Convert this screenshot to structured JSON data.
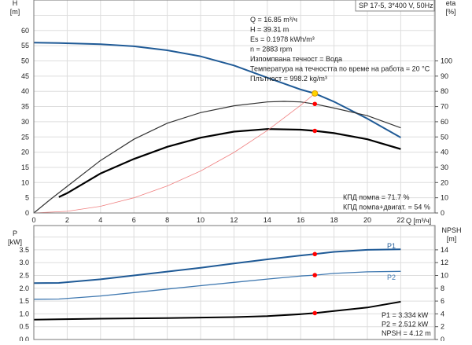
{
  "chart_data": [
    {
      "type": "line",
      "title": "SP 17-5, 3*400 V, 50Hz",
      "xlabel": "Q [m³/ч]",
      "ylabel": "H\n[m]",
      "ylabel_h_top": "H",
      "ylabel_h_unit": "[m]",
      "ylabel_right_top": "eta",
      "ylabel_right_unit": "[%]",
      "xlim": [
        0,
        24
      ],
      "ylim": [
        0,
        70
      ],
      "ylim_right": [
        0,
        140
      ],
      "x_ticks": [
        0,
        2,
        4,
        6,
        8,
        10,
        12,
        14,
        16,
        18,
        20,
        22
      ],
      "y_ticks": [
        0,
        5,
        10,
        15,
        20,
        25,
        30,
        35,
        40,
        45,
        50,
        55,
        60
      ],
      "y_right_ticks": [
        0,
        10,
        20,
        30,
        40,
        50,
        60,
        70,
        80,
        90,
        100
      ],
      "grid": true,
      "series": [
        {
          "key": "H",
          "axis": "left",
          "color": "#1f5a96",
          "x": [
            0,
            1.5,
            4,
            6,
            8,
            10,
            12,
            14,
            16,
            16.85,
            18,
            20,
            22
          ],
          "y": [
            56,
            55.9,
            55.5,
            54.8,
            53.5,
            51.5,
            48.5,
            44.5,
            40.6,
            39.31,
            36.6,
            31,
            24.8
          ]
        },
        {
          "key": "eta_pump",
          "axis": "right",
          "color": "#333333",
          "x": [
            0,
            1,
            2,
            4,
            6,
            8,
            10,
            12,
            14,
            15,
            16,
            16.85,
            18,
            20,
            22
          ],
          "y": [
            0,
            9,
            17.5,
            34.5,
            48.5,
            59,
            66,
            70.5,
            73,
            73.4,
            73,
            71.7,
            69,
            64,
            56
          ]
        },
        {
          "key": "eta_total",
          "axis": "right",
          "color": "#000000",
          "x": [
            1.5,
            2,
            4,
            6,
            8,
            10,
            12,
            14,
            16,
            16.85,
            18,
            20,
            22
          ],
          "y": [
            10.5,
            13,
            26,
            35.5,
            43.5,
            49.5,
            53.5,
            55.2,
            54.8,
            54,
            52.5,
            48.5,
            42
          ]
        },
        {
          "key": "system",
          "axis": "left",
          "color": "#f08080",
          "x": [
            0,
            2,
            4,
            6,
            8,
            10,
            12,
            14,
            16,
            16.85,
            17
          ],
          "y": [
            0,
            0.55,
            2.2,
            5,
            8.9,
            13.8,
            19.9,
            27.1,
            35.4,
            39.31,
            40
          ]
        }
      ],
      "duty_point": {
        "Q": 16.85,
        "H": 39.31,
        "eta_pump": 71.7,
        "eta_total": 54
      },
      "info_lines": [
        "Q = 16.85 m³/ч",
        "H = 39.31 m",
        "Es = 0.1978 kWh/m³",
        "n = 2883 rpm",
        "Изпомпвана течност = Вода",
        "Температура на течността по време на работа = 20 °C",
        "Плътност = 998.2 kg/m³"
      ],
      "efficiency_lines": [
        "КПД помпа = 71.7 %",
        "КПД помпа+двигат. = 54 %"
      ]
    },
    {
      "type": "line",
      "ylabel_top": "P",
      "ylabel_unit": "[kW]",
      "ylabel_right_top": "NPSH",
      "ylabel_right_unit": "[m]",
      "ylim": [
        0,
        4.4
      ],
      "ylim_right": [
        0,
        17.6
      ],
      "y_ticks": [
        "0.0",
        "0.5",
        "1.0",
        "1.5",
        "2.0",
        "2.5",
        "3.0",
        "3.5"
      ],
      "y_right_ticks": [
        0,
        2,
        4,
        6,
        8,
        10,
        12,
        14
      ],
      "grid": true,
      "series": [
        {
          "name": "P1",
          "axis": "left",
          "color": "#1f5a96",
          "x": [
            0,
            1.5,
            4,
            6,
            8,
            10,
            12,
            14,
            16,
            16.85,
            18,
            20,
            22
          ],
          "y": [
            2.2,
            2.21,
            2.35,
            2.5,
            2.65,
            2.8,
            2.97,
            3.13,
            3.28,
            3.334,
            3.42,
            3.5,
            3.52
          ]
        },
        {
          "name": "P2",
          "axis": "left",
          "color": "#3f78b0",
          "x": [
            0,
            1.5,
            4,
            6,
            8,
            10,
            12,
            14,
            16,
            16.85,
            18,
            20,
            22
          ],
          "y": [
            1.57,
            1.58,
            1.7,
            1.83,
            1.97,
            2.1,
            2.23,
            2.36,
            2.48,
            2.512,
            2.58,
            2.64,
            2.66
          ]
        },
        {
          "key": "NPSH",
          "axis": "right",
          "color": "#000000",
          "x": [
            0,
            1.5,
            4,
            8,
            12,
            14,
            16,
            16.85,
            18,
            20,
            22
          ],
          "y": [
            3.1,
            3.15,
            3.25,
            3.35,
            3.5,
            3.65,
            3.95,
            4.12,
            4.45,
            5.0,
            5.9
          ]
        }
      ],
      "readout_lines": [
        "P1 = 3.334 kW",
        "P2 = 2.512 kW",
        "NPSH = 4.12 m"
      ]
    }
  ]
}
